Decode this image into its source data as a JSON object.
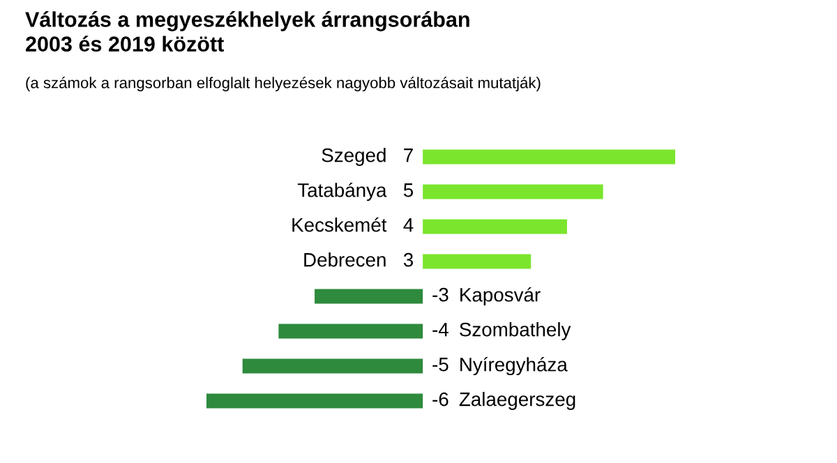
{
  "chart_data": {
    "type": "bar",
    "orientation": "horizontal",
    "title": "Változás a megyeszékhelyek árrangsorában\n2003 és 2019 között",
    "subtitle": "(a számok a rangsorban elfoglalt helyezések nagyobb változásait mutatják)",
    "categories": [
      "Szeged",
      "Tatabánya",
      "Kecskemét",
      "Debrecen",
      "Kaposvár",
      "Szombathely",
      "Nyíregyháza",
      "Zalaegerszeg"
    ],
    "values": [
      7,
      5,
      4,
      3,
      -3,
      -4,
      -5,
      -6
    ],
    "colors": [
      "#7be52d",
      "#7be52d",
      "#7be52d",
      "#7be52d",
      "#2e8a3d",
      "#2e8a3d",
      "#2e8a3d",
      "#2e8a3d"
    ],
    "data_labels": true
  }
}
